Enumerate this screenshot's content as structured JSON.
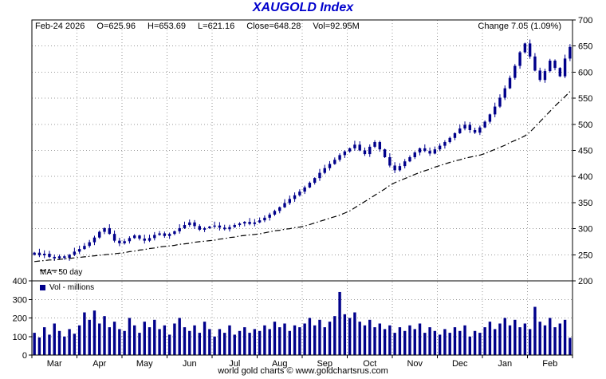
{
  "title": "XAUGOLD Index",
  "quote": {
    "date": "Feb-24  2026",
    "open": "O=625.96",
    "high": "H=653.69",
    "low": "L=621.16",
    "close": "Close=648.28",
    "volume": "Vol=92.95M",
    "change": "Change 7.05 (1.09%)"
  },
  "legend": {
    "ma": "MA - 50 day",
    "vol": "Vol - millions"
  },
  "footer": "world gold charts © www.goldchartsrus.com",
  "colors": {
    "accent": "#0000cc",
    "candle": "#00008b",
    "volume_bar": "#00008b",
    "ma_line": "#000000",
    "grid": "#999999",
    "axis": "#000000"
  },
  "chart_data": {
    "type": "candlestick+volume",
    "title": "XAUGOLD Index",
    "months": [
      "Mar",
      "Apr",
      "May",
      "Jun",
      "Jul",
      "Aug",
      "Sep",
      "Oct",
      "Nov",
      "Dec",
      "Jan",
      "Feb"
    ],
    "bars_per_month": 9,
    "ylim": [
      200,
      700
    ],
    "y_ticks": [
      700,
      650,
      600,
      550,
      500,
      450,
      400,
      350,
      300,
      250,
      200
    ],
    "vol_lim": [
      0,
      400
    ],
    "vol_ticks": [
      400,
      300,
      200,
      100,
      0
    ],
    "grid": true,
    "legend_position": "bottom-left",
    "closes": [
      254,
      249,
      252,
      246,
      243,
      247,
      244,
      250,
      256,
      261,
      267,
      274,
      283,
      294,
      301,
      290,
      277,
      272,
      276,
      282,
      287,
      281,
      277,
      282,
      288,
      291,
      286,
      290,
      295,
      301,
      307,
      312,
      305,
      298,
      301,
      304,
      306,
      302,
      299,
      303,
      307,
      310,
      313,
      309,
      312,
      316,
      321,
      327,
      334,
      341,
      349,
      357,
      364,
      371,
      379,
      388,
      397,
      407,
      416,
      424,
      432,
      441,
      448,
      454,
      461,
      450,
      443,
      457,
      466,
      452,
      437,
      421,
      412,
      420,
      429,
      437,
      446,
      454,
      449,
      444,
      452,
      459,
      466,
      474,
      483,
      492,
      499,
      489,
      484,
      494,
      505,
      519,
      534,
      551,
      569,
      589,
      612,
      638,
      655,
      630,
      603,
      585,
      602,
      622,
      608,
      592,
      626,
      648.28
    ],
    "volumes": [
      120,
      95,
      150,
      110,
      170,
      130,
      100,
      140,
      115,
      160,
      230,
      190,
      240,
      170,
      210,
      150,
      180,
      140,
      130,
      200,
      160,
      120,
      180,
      150,
      190,
      140,
      160,
      110,
      170,
      200,
      150,
      130,
      160,
      120,
      180,
      140,
      100,
      140,
      120,
      160,
      110,
      130,
      150,
      120,
      140,
      130,
      160,
      140,
      180,
      150,
      170,
      130,
      160,
      150,
      170,
      200,
      160,
      190,
      150,
      180,
      210,
      340,
      220,
      200,
      230,
      180,
      160,
      190,
      150,
      170,
      140,
      160,
      120,
      150,
      130,
      160,
      140,
      170,
      120,
      150,
      130,
      110,
      140,
      120,
      150,
      130,
      160,
      100,
      130,
      120,
      150,
      180,
      140,
      170,
      200,
      160,
      190,
      150,
      170,
      140,
      260,
      180,
      160,
      200,
      150,
      170,
      190,
      93
    ],
    "ma50": [
      237,
      238,
      239,
      240,
      240,
      241,
      242,
      243,
      244,
      245,
      246,
      247,
      248,
      249,
      250,
      251,
      252,
      253,
      254,
      256,
      257,
      259,
      260,
      262,
      263,
      265,
      266,
      267,
      268,
      270,
      271,
      272,
      274,
      275,
      276,
      277,
      278,
      280,
      281,
      283,
      284,
      286,
      287,
      288,
      289,
      290,
      292,
      294,
      296,
      297,
      299,
      300,
      302,
      303,
      305,
      308,
      311,
      314,
      317,
      320,
      323,
      326,
      330,
      334,
      340,
      346,
      352,
      358,
      364,
      370,
      376,
      383,
      388,
      392,
      396,
      400,
      404,
      408,
      411,
      414,
      418,
      421,
      424,
      427,
      430,
      432,
      435,
      437,
      439,
      441,
      444,
      448,
      452,
      456,
      460,
      465,
      469,
      473,
      478,
      485,
      495,
      505,
      515,
      525,
      535,
      544,
      553,
      563
    ],
    "last_bar": {
      "open": 625.96,
      "high": 653.69,
      "low": 621.16,
      "close": 648.28,
      "volume_m": 92.95
    }
  }
}
